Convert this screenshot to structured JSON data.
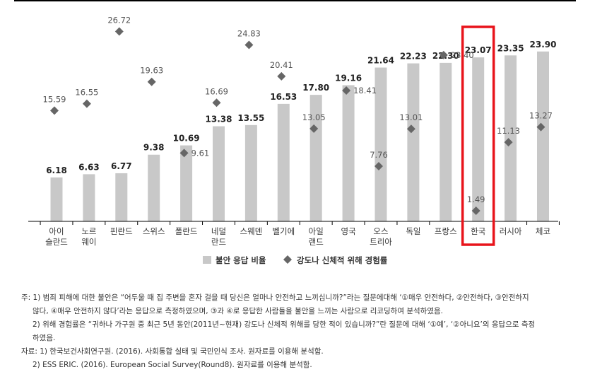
{
  "chart_data": {
    "type": "bar",
    "categories": [
      [
        "아이",
        "슬란드"
      ],
      [
        "노르",
        "웨이"
      ],
      [
        "핀란드"
      ],
      [
        "스위스"
      ],
      [
        "폴란드"
      ],
      [
        "네덜",
        "란드"
      ],
      [
        "스웨덴"
      ],
      [
        "벨기에"
      ],
      [
        "아일",
        "랜드"
      ],
      [
        "영국"
      ],
      [
        "오스",
        "트리아"
      ],
      [
        "독일"
      ],
      [
        "프랑스"
      ],
      [
        "한국"
      ],
      [
        "러시아"
      ],
      [
        "체코"
      ]
    ],
    "series": [
      {
        "name": "불안 응답 비율",
        "kind": "bar",
        "values": [
          6.18,
          6.63,
          6.77,
          9.38,
          10.69,
          13.38,
          13.55,
          16.53,
          17.8,
          19.16,
          21.64,
          22.23,
          22.3,
          23.07,
          23.35,
          23.9
        ],
        "labels": [
          "6.18",
          "6.63",
          "6.77",
          "9.38",
          "10.69",
          "13.38",
          "13.55",
          "16.53",
          "17.80",
          "19.16",
          "21.64",
          "22.23",
          "22.30",
          "23.07",
          "23.35",
          "23.90"
        ]
      },
      {
        "name": "강도나 신체적 위해 경험률",
        "kind": "marker",
        "values": [
          15.59,
          16.55,
          26.72,
          19.63,
          9.61,
          16.69,
          24.83,
          20.41,
          13.05,
          18.41,
          7.76,
          13.01,
          23.4,
          1.49,
          11.13,
          13.27
        ],
        "labels": [
          "15.59",
          "16.55",
          "26.72",
          "19.63",
          "9.61",
          "16.69",
          "24.83",
          "20.41",
          "13.05",
          "18.41",
          "7.76",
          "13.01",
          "23.40",
          "1.49",
          "11.13",
          "13.27"
        ]
      }
    ],
    "ylim": [
      0,
      28
    ],
    "highlight_category_index": 13,
    "colors": {
      "bar": "#c8c8c8",
      "marker": "#666666",
      "highlight": "#e8141b",
      "axis": "#000000"
    },
    "legend_position": "bottom"
  },
  "notes": {
    "line1": "주: 1) 범죄 피해에 대한 불안은 “어두울 때 집 주변을 혼자 걸을 때 당신은 얼마나 안전하고 느끼십니까?”라는 질문에대해 ‘①매우 안전하다, ②안전하다, ③안전하지",
    "line2": "않다, ④매우 안전하지 않다’라는 응답으로 측정하였으며, ③과 ④로 응답한 사람들을 불안을 느끼는 사람으로 리코딩하여 분석하였음.",
    "line3": "2) 위해 경험률은 “귀하나 가구원 중 최근 5년 동안(2011년~현재) 강도나 신체적 위해를 당한 적이 있습니까?”란 질문에 대해 ‘①예’, ‘②아니요’의 응답으로 측정",
    "line4": "하였음.",
    "line5": "자료: 1) 한국보건사회연구원. (2016). 사회통합 실태 및 국민인식 조사. 원자료를 이용해 분석함.",
    "line6": "2) ESS ERIC. (2016). European Social Survey(Round8). 원자료를 이용해 분석함."
  }
}
